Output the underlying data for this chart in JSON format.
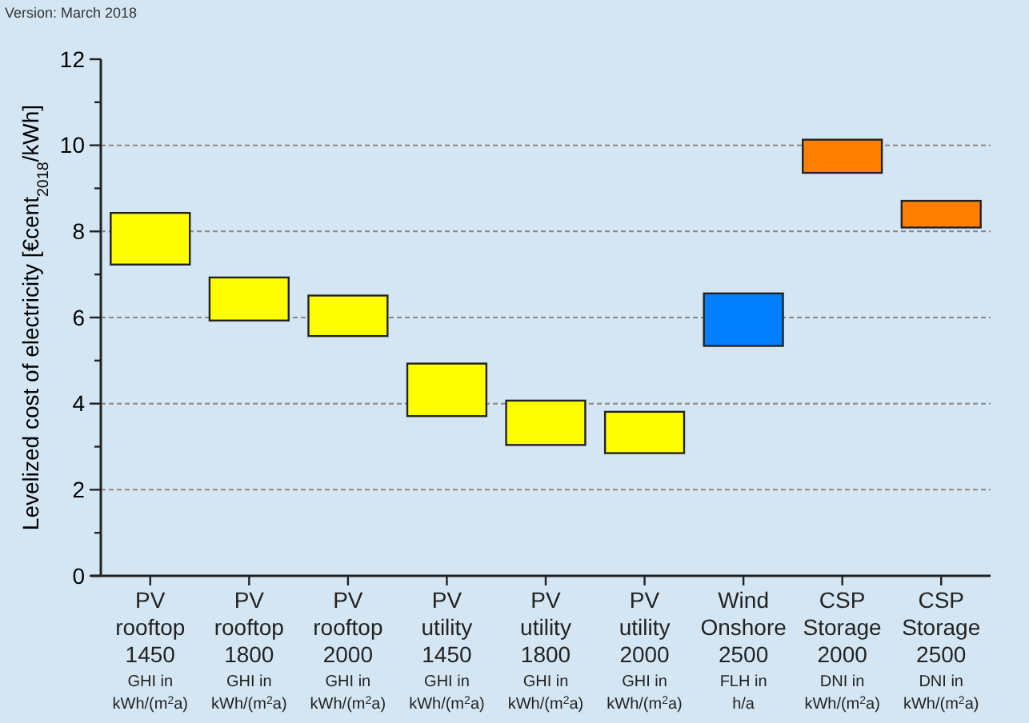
{
  "chart_data": {
    "type": "bar",
    "ylabel": "Levelized cost of electricity [€cent$_{2018}$/kWh]",
    "annotations": [
      "Version: March 2018"
    ],
    "categories": [
      "PV\nrooftop\n1450\nGHI in\nkWh/(m$^{2}$a)",
      "PV\nrooftop\n1800\nGHI in\nkWh/(m$^{2}$a)",
      "PV\nrooftop\n2000\nGHI in\nkWh/(m$^{2}$a)",
      "PV\nutility\n1450\nGHI in\nkWh/(m$^{2}$a)",
      "PV\nutility\n1800\nGHI in\nkWh/(m$^{2}$a)",
      "PV\nutility\n2000\nGHI in\nkWh/(m$^{2}$a)",
      "Wind\nOnshore\n2500\nFLH in\nh/a",
      "CSP\nStorage\n2000\nDNI in\nkWh/(m$^{2}$a)",
      "CSP\nStorage\n2500\nDNI in\nkWh/(m$^{2}$a)"
    ],
    "base": [
      7.23,
      5.93,
      5.57,
      3.71,
      3.04,
      2.85,
      5.34,
      9.36,
      8.09
    ],
    "values": [
      1.2,
      1.0,
      0.94,
      1.22,
      1.03,
      0.96,
      1.22,
      0.77,
      0.62
    ],
    "colors": [
      "#ffff00",
      "#ffff00",
      "#ffff00",
      "#ffff00",
      "#ffff00",
      "#ffff00",
      "#0080ff",
      "#ff8000",
      "#ff8000"
    ],
    "ylim": [
      0,
      12
    ],
    "yticks": [
      0,
      {
        "value": 1,
        "label": null
      },
      2,
      {
        "value": 3,
        "label": null
      },
      4,
      {
        "value": 5,
        "label": null
      },
      6,
      {
        "value": 7,
        "label": null
      },
      8,
      {
        "value": 9,
        "label": null
      },
      10,
      {
        "value": 11,
        "label": null
      },
      12
    ],
    "grid": "y"
  }
}
